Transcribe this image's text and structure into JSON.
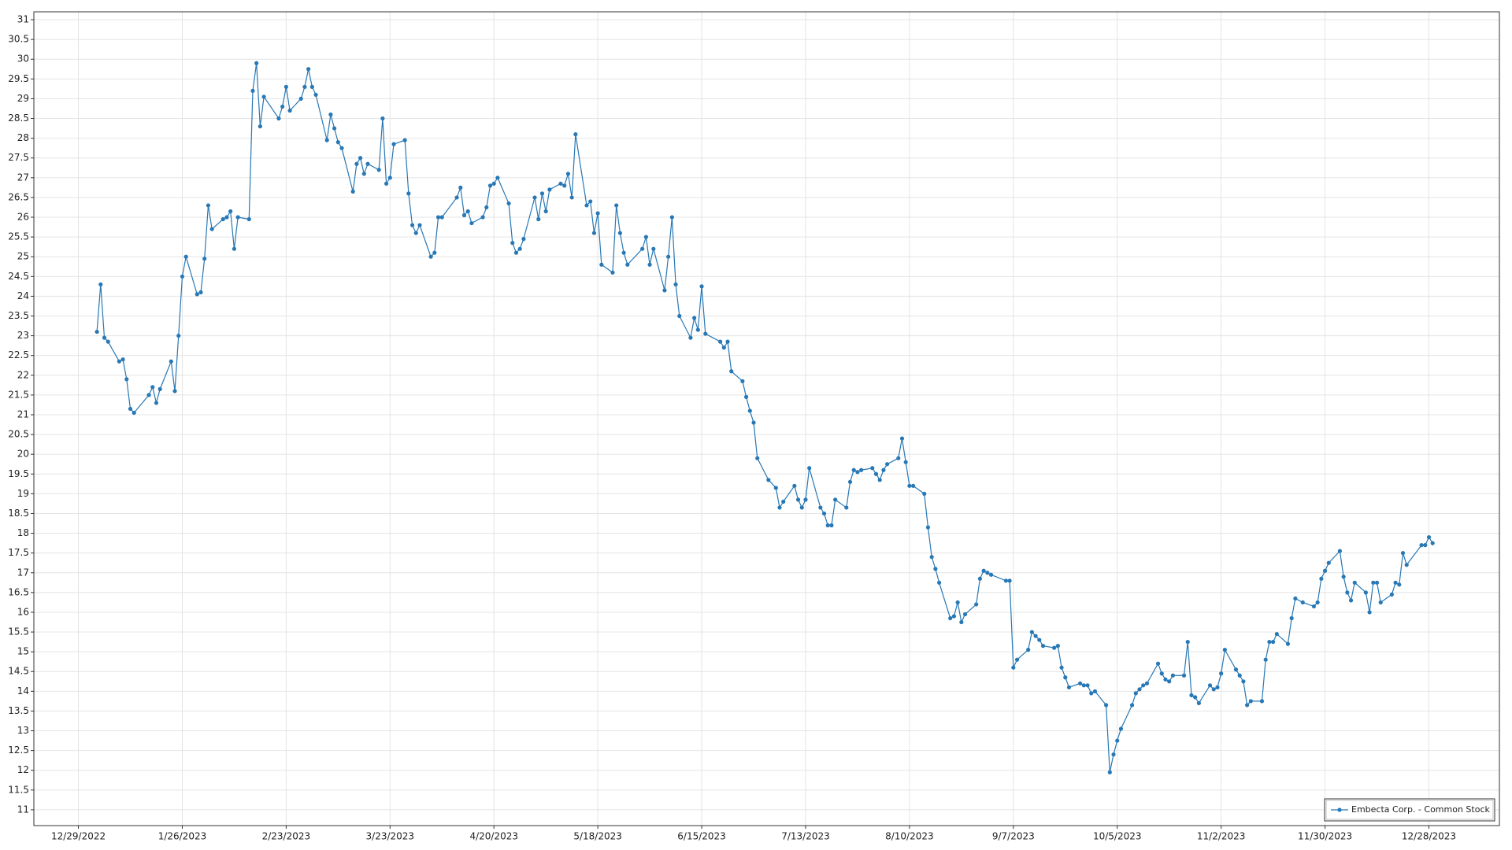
{
  "chart_data": {
    "type": "line",
    "x": [
      "1/3/2023",
      "1/4/2023",
      "1/5/2023",
      "1/6/2023",
      "1/9/2023",
      "1/10/2023",
      "1/11/2023",
      "1/12/2023",
      "1/13/2023",
      "1/17/2023",
      "1/18/2023",
      "1/19/2023",
      "1/20/2023",
      "1/23/2023",
      "1/24/2023",
      "1/25/2023",
      "1/26/2023",
      "1/27/2023",
      "1/30/2023",
      "1/31/2023",
      "2/1/2023",
      "2/2/2023",
      "2/3/2023",
      "2/6/2023",
      "2/7/2023",
      "2/8/2023",
      "2/9/2023",
      "2/10/2023",
      "2/13/2023",
      "2/14/2023",
      "2/15/2023",
      "2/16/2023",
      "2/17/2023",
      "2/21/2023",
      "2/22/2023",
      "2/23/2023",
      "2/24/2023",
      "2/27/2023",
      "2/28/2023",
      "3/1/2023",
      "3/2/2023",
      "3/3/2023",
      "3/6/2023",
      "3/7/2023",
      "3/8/2023",
      "3/9/2023",
      "3/10/2023",
      "3/13/2023",
      "3/14/2023",
      "3/15/2023",
      "3/16/2023",
      "3/17/2023",
      "3/20/2023",
      "3/21/2023",
      "3/22/2023",
      "3/23/2023",
      "3/24/2023",
      "3/27/2023",
      "3/28/2023",
      "3/29/2023",
      "3/30/2023",
      "3/31/2023",
      "4/3/2023",
      "4/4/2023",
      "4/5/2023",
      "4/6/2023",
      "4/10/2023",
      "4/11/2023",
      "4/12/2023",
      "4/13/2023",
      "4/14/2023",
      "4/17/2023",
      "4/18/2023",
      "4/19/2023",
      "4/20/2023",
      "4/21/2023",
      "4/24/2023",
      "4/25/2023",
      "4/26/2023",
      "4/27/2023",
      "4/28/2023",
      "5/1/2023",
      "5/2/2023",
      "5/3/2023",
      "5/4/2023",
      "5/5/2023",
      "5/8/2023",
      "5/9/2023",
      "5/10/2023",
      "5/11/2023",
      "5/12/2023",
      "5/15/2023",
      "5/16/2023",
      "5/17/2023",
      "5/18/2023",
      "5/19/2023",
      "5/22/2023",
      "5/23/2023",
      "5/24/2023",
      "5/25/2023",
      "5/26/2023",
      "5/30/2023",
      "5/31/2023",
      "6/1/2023",
      "6/2/2023",
      "6/5/2023",
      "6/6/2023",
      "6/7/2023",
      "6/8/2023",
      "6/9/2023",
      "6/12/2023",
      "6/13/2023",
      "6/14/2023",
      "6/15/2023",
      "6/16/2023",
      "6/20/2023",
      "6/21/2023",
      "6/22/2023",
      "6/23/2023",
      "6/26/2023",
      "6/27/2023",
      "6/28/2023",
      "6/29/2023",
      "6/30/2023",
      "7/3/2023",
      "7/5/2023",
      "7/6/2023",
      "7/7/2023",
      "7/10/2023",
      "7/11/2023",
      "7/12/2023",
      "7/13/2023",
      "7/14/2023",
      "7/17/2023",
      "7/18/2023",
      "7/19/2023",
      "7/20/2023",
      "7/21/2023",
      "7/24/2023",
      "7/25/2023",
      "7/26/2023",
      "7/27/2023",
      "7/28/2023",
      "7/31/2023",
      "8/1/2023",
      "8/2/2023",
      "8/3/2023",
      "8/4/2023",
      "8/7/2023",
      "8/8/2023",
      "8/9/2023",
      "8/10/2023",
      "8/11/2023",
      "8/14/2023",
      "8/15/2023",
      "8/16/2023",
      "8/17/2023",
      "8/18/2023",
      "8/21/2023",
      "8/22/2023",
      "8/23/2023",
      "8/24/2023",
      "8/25/2023",
      "8/28/2023",
      "8/29/2023",
      "8/30/2023",
      "8/31/2023",
      "9/1/2023",
      "9/5/2023",
      "9/6/2023",
      "9/7/2023",
      "9/8/2023",
      "9/11/2023",
      "9/12/2023",
      "9/13/2023",
      "9/14/2023",
      "9/15/2023",
      "9/18/2023",
      "9/19/2023",
      "9/20/2023",
      "9/21/2023",
      "9/22/2023",
      "9/25/2023",
      "9/26/2023",
      "9/27/2023",
      "9/28/2023",
      "9/29/2023",
      "10/2/2023",
      "10/3/2023",
      "10/4/2023",
      "10/5/2023",
      "10/6/2023",
      "10/9/2023",
      "10/10/2023",
      "10/11/2023",
      "10/12/2023",
      "10/13/2023",
      "10/16/2023",
      "10/17/2023",
      "10/18/2023",
      "10/19/2023",
      "10/20/2023",
      "10/23/2023",
      "10/24/2023",
      "10/25/2023",
      "10/26/2023",
      "10/27/2023",
      "10/30/2023",
      "10/31/2023",
      "11/1/2023",
      "11/2/2023",
      "11/3/2023",
      "11/6/2023",
      "11/7/2023",
      "11/8/2023",
      "11/9/2023",
      "11/10/2023",
      "11/13/2023",
      "11/14/2023",
      "11/15/2023",
      "11/16/2023",
      "11/17/2023",
      "11/20/2023",
      "11/21/2023",
      "11/22/2023",
      "11/24/2023",
      "11/27/2023",
      "11/28/2023",
      "11/29/2023",
      "11/30/2023",
      "12/1/2023",
      "12/4/2023",
      "12/5/2023",
      "12/6/2023",
      "12/7/2023",
      "12/8/2023",
      "12/11/2023",
      "12/12/2023",
      "12/13/2023",
      "12/14/2023",
      "12/15/2023",
      "12/18/2023",
      "12/19/2023",
      "12/20/2023",
      "12/21/2023",
      "12/22/2023",
      "12/26/2023",
      "12/27/2023",
      "12/28/2023",
      "12/29/2023"
    ],
    "series": [
      {
        "name": "Embecta Corp. - Common Stock",
        "color": "#2878b5",
        "values": [
          23.1,
          24.3,
          22.95,
          22.85,
          22.35,
          22.4,
          21.9,
          21.15,
          21.05,
          21.5,
          21.7,
          21.3,
          21.65,
          22.35,
          21.6,
          23.0,
          24.5,
          25.0,
          24.05,
          24.1,
          24.95,
          26.3,
          25.7,
          25.95,
          26.0,
          26.15,
          25.2,
          26.0,
          25.95,
          29.2,
          29.9,
          28.3,
          29.05,
          28.5,
          28.8,
          29.3,
          28.7,
          29.0,
          29.3,
          29.75,
          29.3,
          29.1,
          27.95,
          28.6,
          28.25,
          27.9,
          27.75,
          26.65,
          27.35,
          27.5,
          27.1,
          27.35,
          27.2,
          28.5,
          26.85,
          27.0,
          27.85,
          27.95,
          26.6,
          25.8,
          25.6,
          25.8,
          25.0,
          25.1,
          26.0,
          26.0,
          26.5,
          26.75,
          26.05,
          26.15,
          25.85,
          26.0,
          26.25,
          26.8,
          26.85,
          27.0,
          26.35,
          25.35,
          25.1,
          25.2,
          25.45,
          26.5,
          25.95,
          26.6,
          26.15,
          26.7,
          26.85,
          26.8,
          27.1,
          26.5,
          28.1,
          26.3,
          26.4,
          25.6,
          26.1,
          24.8,
          24.6,
          26.3,
          25.6,
          25.1,
          24.8,
          25.2,
          25.5,
          24.8,
          25.2,
          24.15,
          25.0,
          26.0,
          24.3,
          23.5,
          22.95,
          23.45,
          23.15,
          24.25,
          23.05,
          22.85,
          22.7,
          22.85,
          22.1,
          21.85,
          21.45,
          21.1,
          20.8,
          19.9,
          19.35,
          19.15,
          18.65,
          18.8,
          19.2,
          18.85,
          18.65,
          18.85,
          19.65,
          18.65,
          18.5,
          18.2,
          18.2,
          18.85,
          18.65,
          19.3,
          19.6,
          19.55,
          19.6,
          19.65,
          19.5,
          19.35,
          19.6,
          19.75,
          19.9,
          20.4,
          19.8,
          19.2,
          19.2,
          19.0,
          18.15,
          17.4,
          17.1,
          16.75,
          15.85,
          15.9,
          16.25,
          15.75,
          15.95,
          16.2,
          16.85,
          17.05,
          17.0,
          16.95,
          16.8,
          16.8,
          14.6,
          14.8,
          15.05,
          15.5,
          15.4,
          15.3,
          15.15,
          15.1,
          15.15,
          14.6,
          14.35,
          14.1,
          14.2,
          14.15,
          14.15,
          13.95,
          14.0,
          13.65,
          11.95,
          12.4,
          12.75,
          13.05,
          13.65,
          13.95,
          14.05,
          14.15,
          14.2,
          14.7,
          14.45,
          14.3,
          14.25,
          14.4,
          14.4,
          15.25,
          13.9,
          13.85,
          13.7,
          14.15,
          14.05,
          14.1,
          14.45,
          15.05,
          14.55,
          14.4,
          14.25,
          13.65,
          13.75,
          13.75,
          14.8,
          15.25,
          15.25,
          15.45,
          15.2,
          15.85,
          16.35,
          16.25,
          16.15,
          16.25,
          16.85,
          17.05,
          17.25,
          17.55,
          16.9,
          16.5,
          16.3,
          16.75,
          16.5,
          16.0,
          16.75,
          16.75,
          16.25,
          16.45,
          16.75,
          16.7,
          17.5,
          17.2,
          17.7,
          17.7,
          17.9,
          17.75
        ]
      }
    ],
    "xlim": [
      "12/17/2022",
      "1/16/2024"
    ],
    "xticks": [
      "12/29/2022",
      "1/26/2023",
      "2/23/2023",
      "3/23/2023",
      "4/20/2023",
      "5/18/2023",
      "6/15/2023",
      "7/13/2023",
      "8/10/2023",
      "9/7/2023",
      "10/5/2023",
      "11/2/2023",
      "11/30/2023",
      "12/28/2023"
    ],
    "ylim": [
      10.6,
      31.2
    ],
    "yticks": [
      11,
      11.5,
      12,
      12.5,
      13,
      13.5,
      14,
      14.5,
      15,
      15.5,
      16,
      16.5,
      17,
      17.5,
      18,
      18.5,
      19,
      19.5,
      20,
      20.5,
      21,
      21.5,
      22,
      22.5,
      23,
      23.5,
      24,
      24.5,
      25,
      25.5,
      26,
      26.5,
      27,
      27.5,
      28,
      28.5,
      29,
      29.5,
      30,
      30.5,
      31
    ],
    "grid": true,
    "legend": "lower right"
  }
}
